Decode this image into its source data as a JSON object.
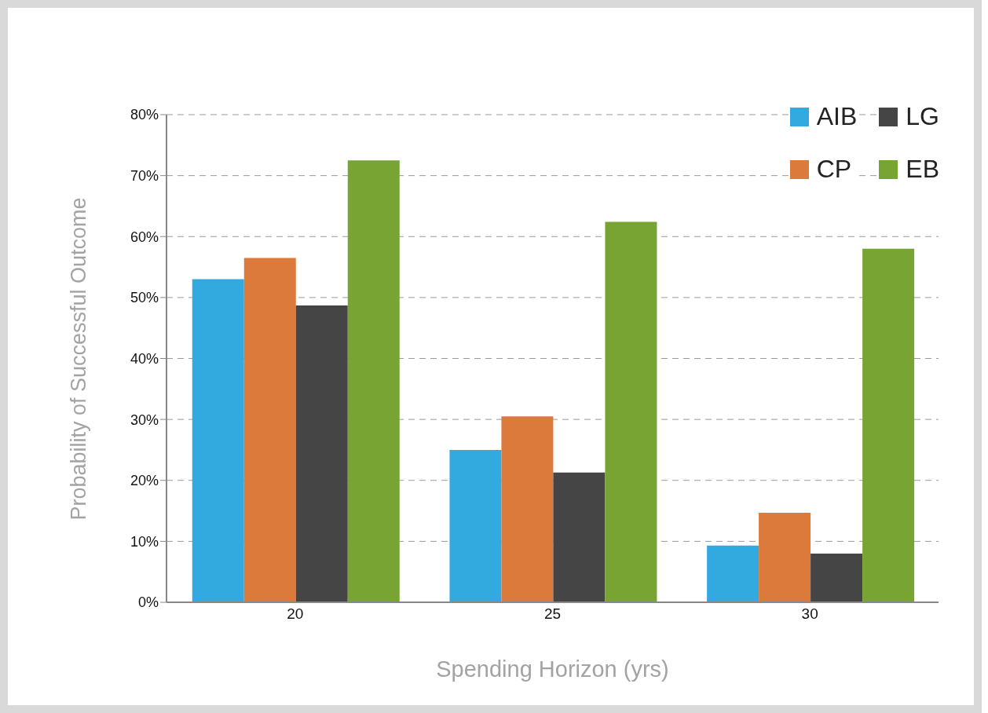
{
  "chart_data": {
    "type": "bar",
    "xlabel": "Spending Horizon (yrs)",
    "ylabel": "Probability of Successful Outcome",
    "categories": [
      "20",
      "25",
      "30"
    ],
    "series": [
      {
        "name": "AIB",
        "color": "#33aadf",
        "values": [
          53,
          25,
          9.3
        ]
      },
      {
        "name": "CP",
        "color": "#dc7a3c",
        "values": [
          56.5,
          30.5,
          14.7
        ]
      },
      {
        "name": "LG",
        "color": "#454545",
        "values": [
          48.7,
          21.3,
          8
        ]
      },
      {
        "name": "EB",
        "color": "#78a433",
        "values": [
          72.5,
          62.4,
          58
        ]
      }
    ],
    "ylim": [
      0,
      80
    ],
    "yticks": [
      {
        "value": 0,
        "label": "0%"
      },
      {
        "value": 10,
        "label": "10%"
      },
      {
        "value": 20,
        "label": "20%"
      },
      {
        "value": 30,
        "label": "30%"
      },
      {
        "value": 40,
        "label": "40%"
      },
      {
        "value": 50,
        "label": "50%"
      },
      {
        "value": 60,
        "label": "60%"
      },
      {
        "value": 70,
        "label": "70%"
      },
      {
        "value": 80,
        "label": "80%"
      }
    ],
    "grid": "y",
    "legend": "top right"
  }
}
